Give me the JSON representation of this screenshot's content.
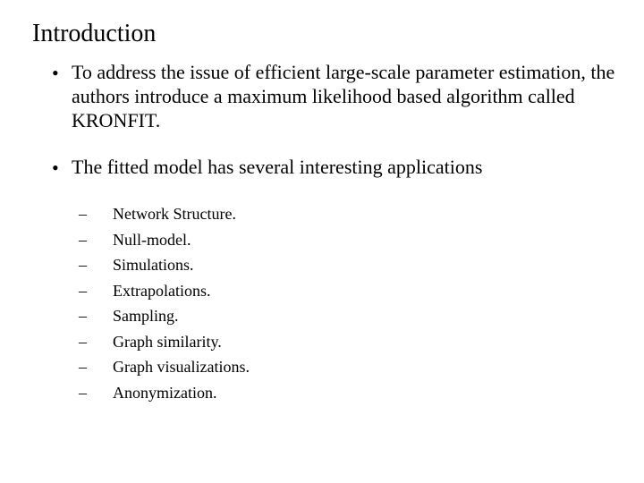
{
  "title": "Introduction",
  "body": {
    "bullets": [
      {
        "text": "To address the issue of efficient large-scale parameter estimation, the authors introduce a maximum likelihood based algorithm called KRONFIT."
      },
      {
        "text": "The fitted model has several interesting applications",
        "subbullets": [
          "Network Structure.",
          "Null-model.",
          "Simulations.",
          "Extrapolations.",
          "Sampling.",
          "Graph similarity.",
          "Graph visualizations.",
          "Anonymization."
        ]
      }
    ]
  },
  "style": {
    "background_color": "#ffffff",
    "text_color": "#000000",
    "title_fontsize": 28,
    "bullet1_fontsize": 22,
    "bullet2_fontsize": 18,
    "bullet1_marker": "•",
    "bullet2_marker": "–"
  }
}
